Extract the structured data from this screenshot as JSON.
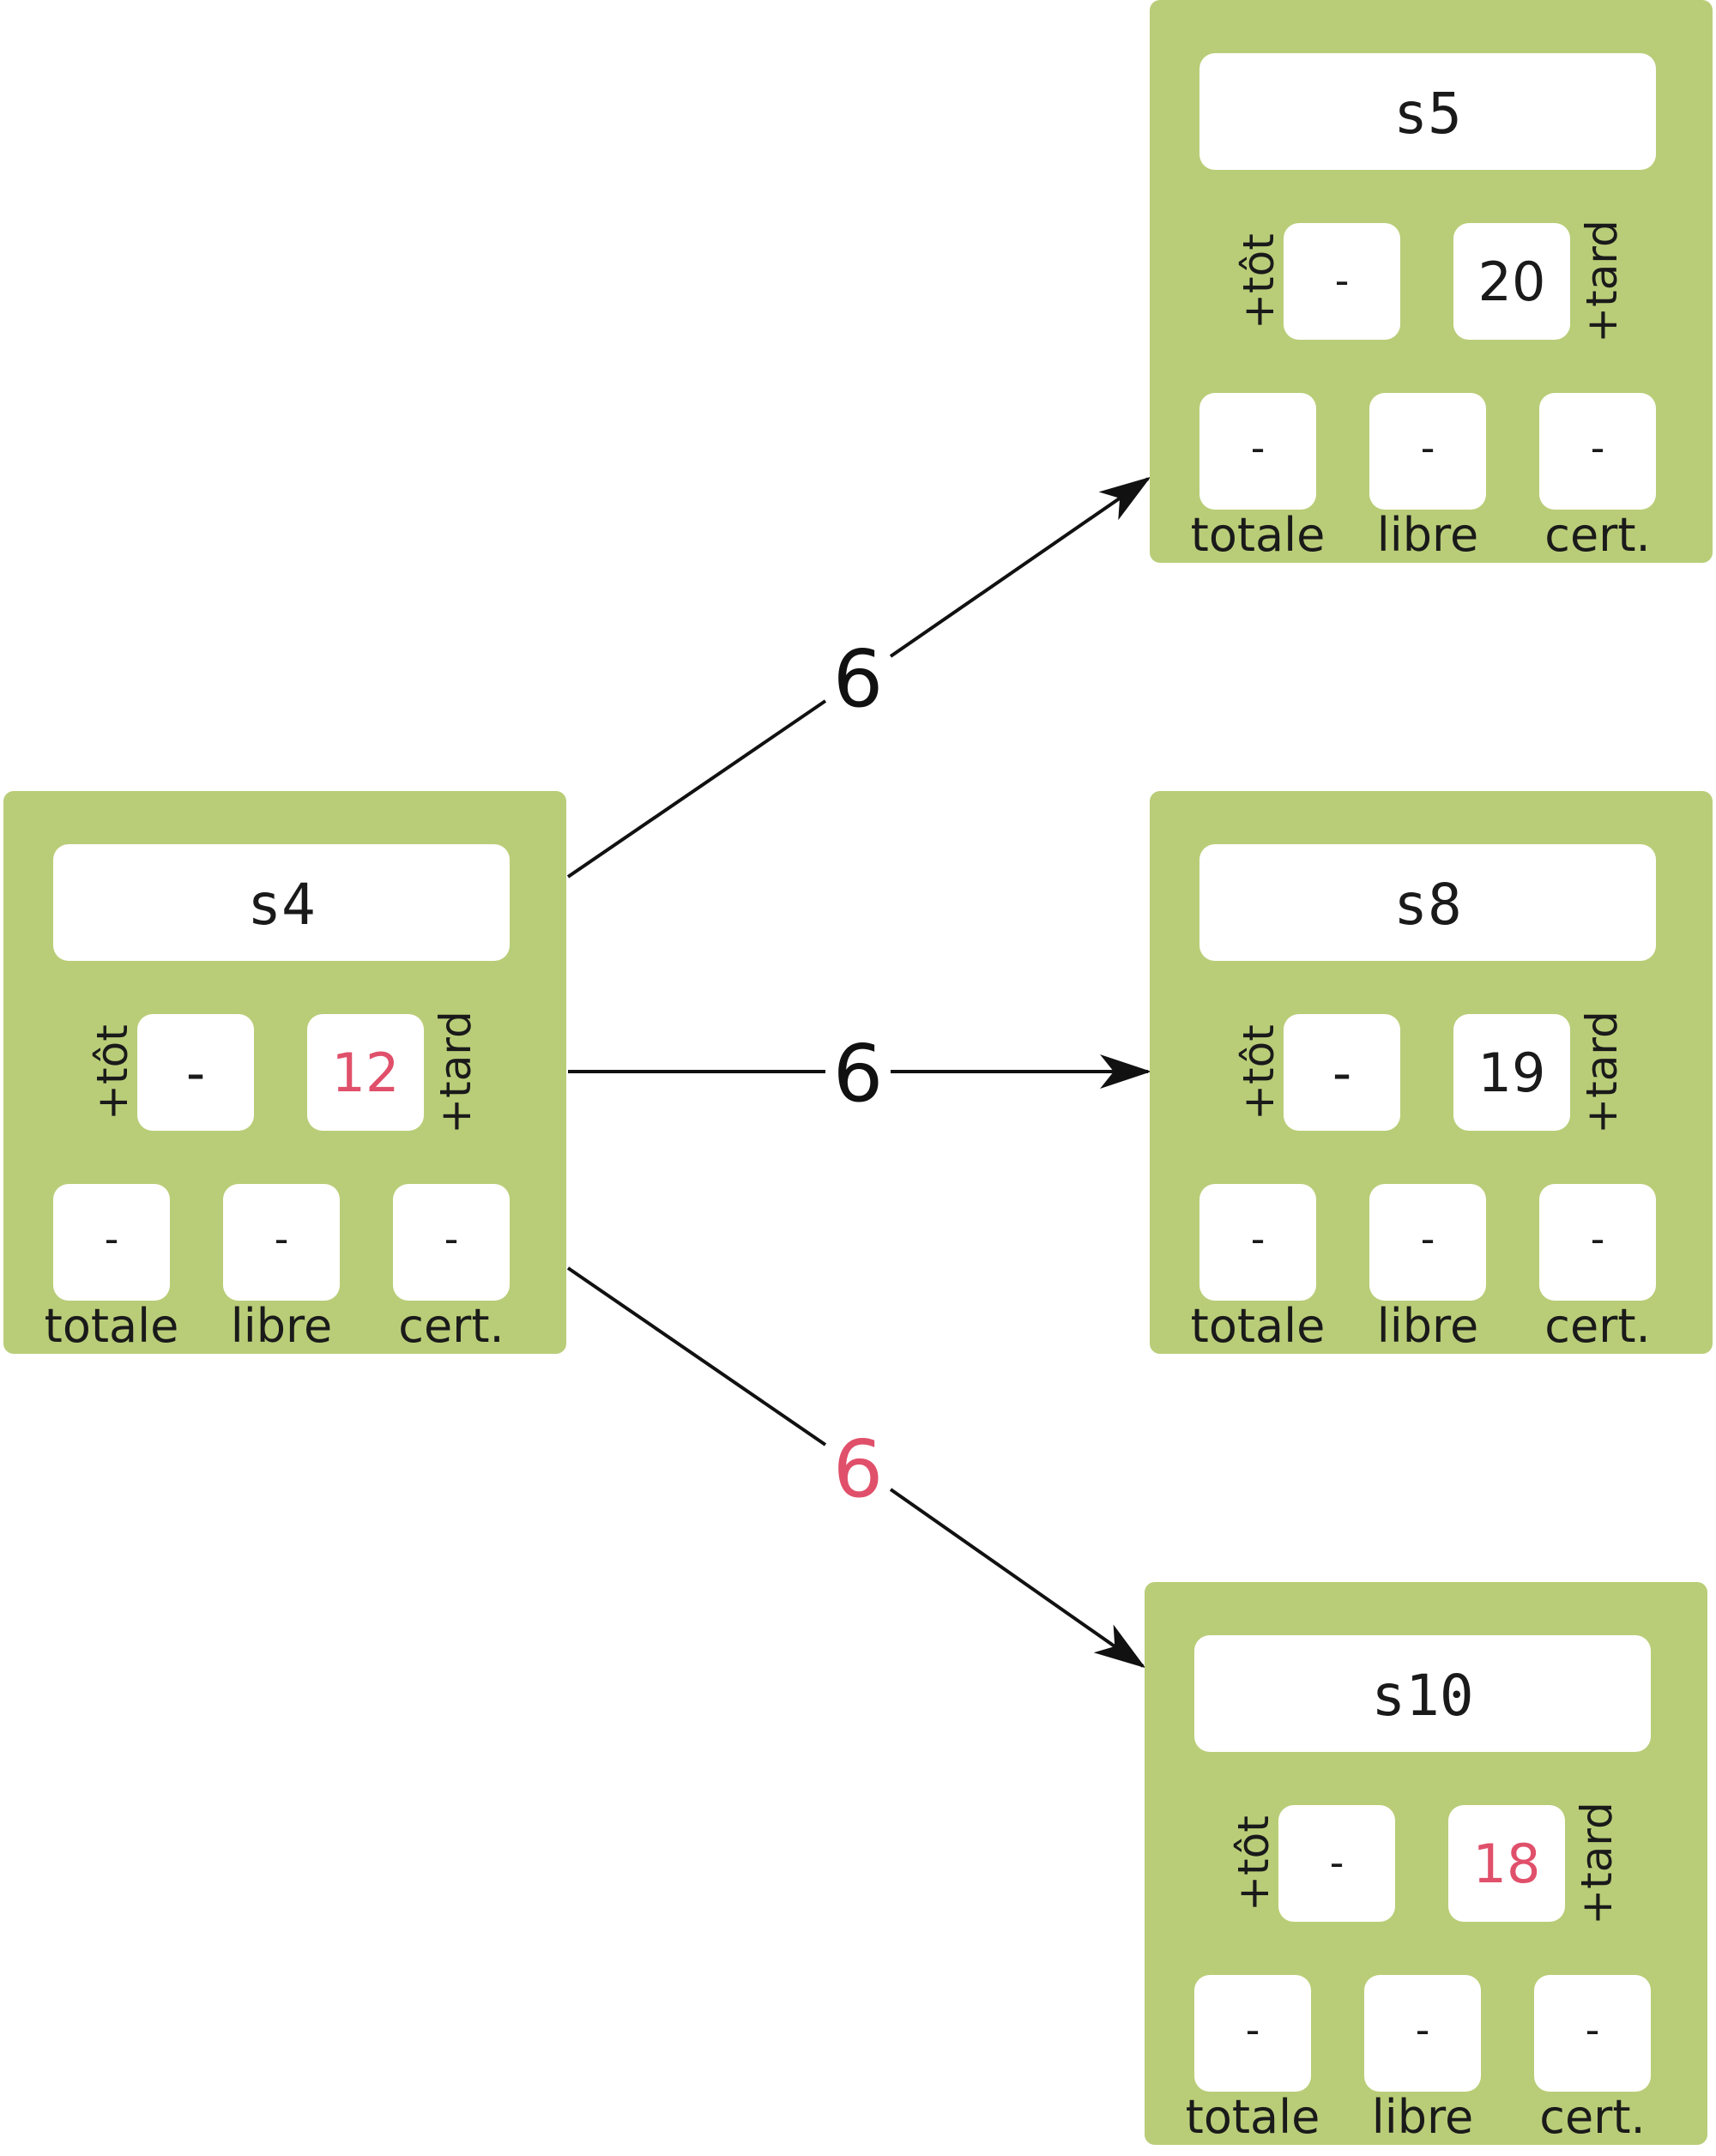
{
  "accent_color": "#e0506a",
  "node_color": "#b9cd78",
  "nodes": [
    {
      "id": "s4",
      "title": "s4",
      "tot": "-",
      "tard": "12",
      "tard_highlight": true,
      "totale": "-",
      "libre": "-",
      "cert": "-",
      "labels": {
        "tot": "+tôt",
        "tard": "+tard",
        "totale": "totale",
        "libre": "libre",
        "cert": "cert."
      }
    },
    {
      "id": "s5",
      "title": "s5",
      "tot": "-",
      "tard": "20",
      "tard_highlight": false,
      "totale": "-",
      "libre": "-",
      "cert": "-",
      "labels": {
        "tot": "+tôt",
        "tard": "+tard",
        "totale": "totale",
        "libre": "libre",
        "cert": "cert."
      }
    },
    {
      "id": "s8",
      "title": "s8",
      "tot": "-",
      "tard": "19",
      "tard_highlight": false,
      "totale": "-",
      "libre": "-",
      "cert": "-",
      "labels": {
        "tot": "+tôt",
        "tard": "+tard",
        "totale": "totale",
        "libre": "libre",
        "cert": "cert."
      }
    },
    {
      "id": "s10",
      "title": "s10",
      "tot": "-",
      "tard": "18",
      "tard_highlight": true,
      "totale": "-",
      "libre": "-",
      "cert": "-",
      "labels": {
        "tot": "+tôt",
        "tard": "+tard",
        "totale": "totale",
        "libre": "libre",
        "cert": "cert."
      }
    }
  ],
  "edges": [
    {
      "from": "s4",
      "to": "s5",
      "label": "6",
      "highlight": false
    },
    {
      "from": "s4",
      "to": "s8",
      "label": "6",
      "highlight": false
    },
    {
      "from": "s4",
      "to": "s10",
      "label": "6",
      "highlight": true
    }
  ]
}
